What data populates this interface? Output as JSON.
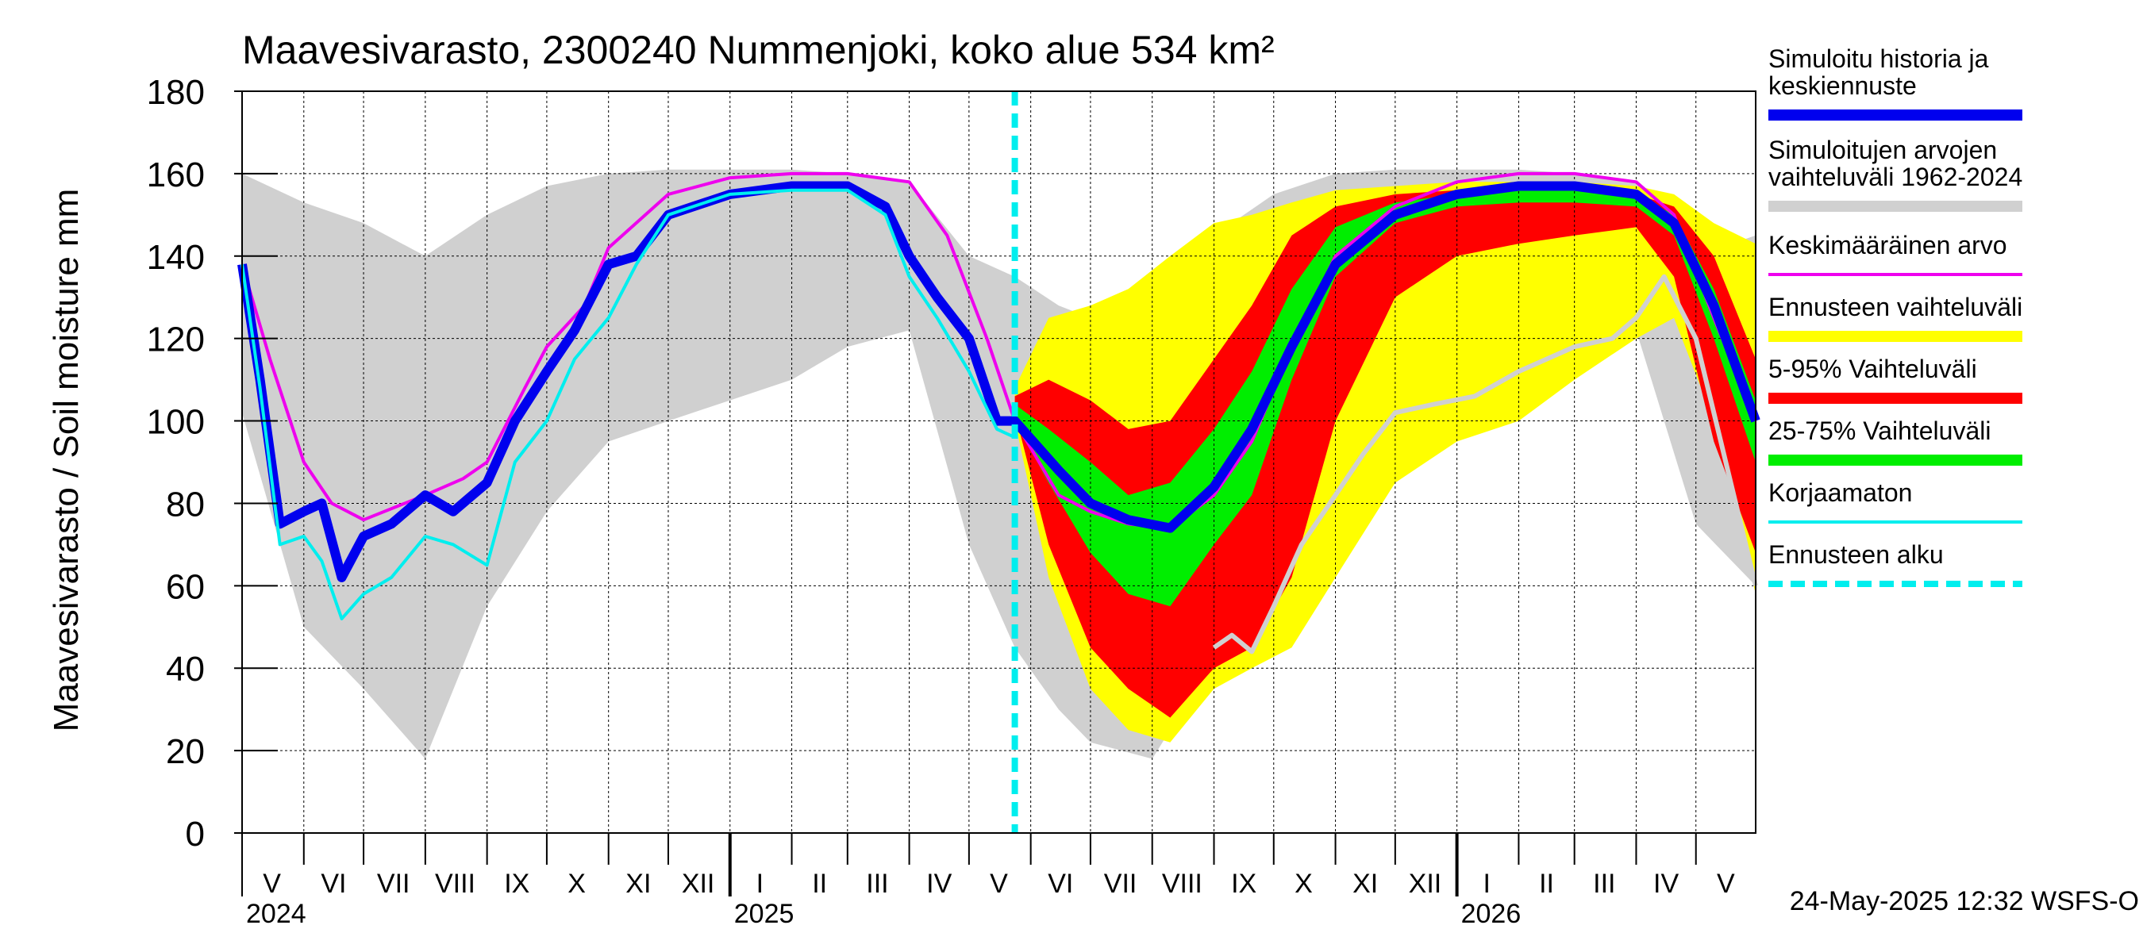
{
  "chart_data": {
    "type": "area",
    "title": "Maavesivarasto, 2300240 Nummenjoki, koko alue 534 km²",
    "ylabel": "Maavesivarasto / Soil moisture   mm",
    "ylim": [
      0,
      180
    ],
    "yticks": [
      0,
      20,
      40,
      60,
      80,
      100,
      120,
      140,
      160,
      180
    ],
    "xlim": [
      "2024-05-01",
      "2026-05-31"
    ],
    "grid": true,
    "legend_position": "right",
    "month_labels": [
      {
        "label": "V",
        "date": "2024-05-16"
      },
      {
        "label": "VI",
        "date": "2024-06-16"
      },
      {
        "label": "VII",
        "date": "2024-07-16"
      },
      {
        "label": "VIII",
        "date": "2024-08-16"
      },
      {
        "label": "IX",
        "date": "2024-09-16"
      },
      {
        "label": "X",
        "date": "2024-10-16"
      },
      {
        "label": "XI",
        "date": "2024-11-16"
      },
      {
        "label": "XII",
        "date": "2024-12-16"
      },
      {
        "label": "I",
        "date": "2025-01-16"
      },
      {
        "label": "II",
        "date": "2025-02-15"
      },
      {
        "label": "III",
        "date": "2025-03-16"
      },
      {
        "label": "IV",
        "date": "2025-04-16"
      },
      {
        "label": "V",
        "date": "2025-05-16"
      },
      {
        "label": "VI",
        "date": "2025-06-16"
      },
      {
        "label": "VII",
        "date": "2025-07-16"
      },
      {
        "label": "VIII",
        "date": "2025-08-16"
      },
      {
        "label": "IX",
        "date": "2025-09-16"
      },
      {
        "label": "X",
        "date": "2025-10-16"
      },
      {
        "label": "XI",
        "date": "2025-11-16"
      },
      {
        "label": "XII",
        "date": "2025-12-16"
      },
      {
        "label": "I",
        "date": "2026-01-16"
      },
      {
        "label": "II",
        "date": "2026-02-15"
      },
      {
        "label": "III",
        "date": "2026-03-16"
      },
      {
        "label": "IV",
        "date": "2026-04-16"
      },
      {
        "label": "V",
        "date": "2026-05-16"
      }
    ],
    "year_labels": [
      {
        "label": "2024",
        "date": "2024-05-01"
      },
      {
        "label": "2025",
        "date": "2025-01-01"
      },
      {
        "label": "2026",
        "date": "2026-01-01"
      }
    ],
    "forecast_start": "2025-05-24",
    "timestamp": "24-May-2025 12:32 WSFS-O",
    "legend": [
      {
        "label": "Simuloitu historia ja keskiennuste",
        "color": "#0000ee",
        "style": "thick"
      },
      {
        "label": "Simuloitujen arvojen vaihteluväli 1962-2024",
        "color": "#d0d0d0",
        "style": "thick"
      },
      {
        "label": "Keskimääräinen arvo",
        "color": "#ee00ee",
        "style": "line"
      },
      {
        "label": "Ennusteen vaihteluväli",
        "color": "#ffff00",
        "style": "thick"
      },
      {
        "label": "5-95% Vaihteluväli",
        "color": "#ff0000",
        "style": "thick"
      },
      {
        "label": "25-75% Vaihteluväli",
        "color": "#00ee00",
        "style": "thick"
      },
      {
        "label": "Korjaamaton",
        "color": "#00eeee",
        "style": "line"
      },
      {
        "label": "Ennusteen alku",
        "color": "#00eeee",
        "style": "dashed"
      }
    ],
    "series": [
      {
        "name": "Simuloitujen arvojen vaihteluväli 1962-2024",
        "kind": "band",
        "color": "#d0d0d0",
        "x": [
          "2024-05-01",
          "2024-06-01",
          "2024-07-01",
          "2024-08-01",
          "2024-09-01",
          "2024-10-01",
          "2024-11-01",
          "2024-12-01",
          "2025-01-01",
          "2025-02-01",
          "2025-03-01",
          "2025-04-01",
          "2025-05-01",
          "2025-05-24",
          "2025-06-15",
          "2025-07-01",
          "2025-08-01",
          "2025-09-01",
          "2025-10-01",
          "2025-11-01",
          "2025-12-01",
          "2026-01-01",
          "2026-02-01",
          "2026-03-01",
          "2026-04-01",
          "2026-05-01",
          "2026-05-31"
        ],
        "low": [
          102,
          50,
          35,
          18,
          55,
          78,
          95,
          100,
          105,
          110,
          118,
          122,
          70,
          45,
          30,
          22,
          18,
          42,
          60,
          82,
          98,
          105,
          110,
          118,
          122,
          75,
          60
        ],
        "high": [
          160,
          153,
          148,
          140,
          150,
          157,
          160,
          161,
          161,
          161,
          160,
          158,
          140,
          135,
          128,
          125,
          128,
          145,
          155,
          160,
          161,
          161,
          161,
          160,
          158,
          140,
          145
        ]
      },
      {
        "name": "Ennusteen vaihteluväli",
        "kind": "band",
        "color": "#ffff00",
        "x": [
          "2025-05-24",
          "2025-06-10",
          "2025-07-01",
          "2025-07-20",
          "2025-08-10",
          "2025-09-01",
          "2025-09-20",
          "2025-10-10",
          "2025-11-01",
          "2025-12-01",
          "2026-01-01",
          "2026-02-01",
          "2026-03-01",
          "2026-04-01",
          "2026-04-20",
          "2026-05-10",
          "2026-05-31"
        ],
        "low": [
          100,
          62,
          35,
          25,
          22,
          35,
          40,
          45,
          62,
          85,
          95,
          100,
          110,
          120,
          125,
          100,
          58
        ],
        "high": [
          108,
          125,
          128,
          132,
          140,
          148,
          150,
          153,
          156,
          157,
          158,
          158,
          158,
          157,
          155,
          148,
          143
        ]
      },
      {
        "name": "5-95% Vaihteluväli",
        "kind": "band",
        "color": "#ff0000",
        "x": [
          "2025-05-24",
          "2025-06-10",
          "2025-07-01",
          "2025-07-20",
          "2025-08-10",
          "2025-09-01",
          "2025-09-20",
          "2025-10-10",
          "2025-11-01",
          "2025-12-01",
          "2026-01-01",
          "2026-02-01",
          "2026-03-01",
          "2026-04-01",
          "2026-04-20",
          "2026-05-10",
          "2026-05-31"
        ],
        "low": [
          102,
          70,
          45,
          35,
          28,
          40,
          45,
          62,
          100,
          130,
          140,
          143,
          145,
          147,
          135,
          95,
          68
        ],
        "high": [
          106,
          110,
          105,
          98,
          100,
          115,
          128,
          145,
          152,
          155,
          156,
          156,
          156,
          155,
          152,
          140,
          115
        ]
      },
      {
        "name": "25-75% Vaihteluväli",
        "kind": "band",
        "color": "#00ee00",
        "x": [
          "2025-05-24",
          "2025-06-10",
          "2025-07-01",
          "2025-07-20",
          "2025-08-10",
          "2025-09-01",
          "2025-09-20",
          "2025-10-10",
          "2025-11-01",
          "2025-12-01",
          "2026-01-01",
          "2026-02-01",
          "2026-03-01",
          "2026-04-01",
          "2026-04-20",
          "2026-05-10",
          "2026-05-31"
        ],
        "low": [
          100,
          85,
          68,
          58,
          55,
          70,
          82,
          110,
          135,
          148,
          152,
          153,
          153,
          152,
          145,
          120,
          90
        ],
        "high": [
          104,
          98,
          90,
          82,
          85,
          98,
          112,
          132,
          147,
          153,
          155,
          156,
          156,
          155,
          150,
          132,
          105
        ]
      },
      {
        "name": "Keskimääräinen arvo",
        "kind": "line",
        "color": "#ee00ee",
        "x": [
          "2024-05-01",
          "2024-05-15",
          "2024-06-01",
          "2024-06-15",
          "2024-07-01",
          "2024-08-01",
          "2024-08-20",
          "2024-09-01",
          "2024-09-20",
          "2024-10-01",
          "2024-10-20",
          "2024-11-01",
          "2024-12-01",
          "2025-01-01",
          "2025-02-01",
          "2025-03-01",
          "2025-04-01",
          "2025-04-20",
          "2025-05-10",
          "2025-05-24",
          "2025-06-15",
          "2025-07-01",
          "2025-07-20",
          "2025-08-10",
          "2025-09-01",
          "2025-09-20",
          "2025-10-10",
          "2025-11-01",
          "2025-12-01",
          "2026-01-01",
          "2026-02-01",
          "2026-03-01",
          "2026-04-01",
          "2026-04-20",
          "2026-05-10",
          "2026-05-31"
        ],
        "y": [
          138,
          115,
          90,
          80,
          76,
          82,
          86,
          90,
          108,
          118,
          128,
          142,
          155,
          159,
          160,
          160,
          158,
          145,
          120,
          100,
          82,
          78,
          75,
          74,
          82,
          95,
          118,
          140,
          152,
          158,
          160,
          160,
          158,
          150,
          125,
          100
        ]
      },
      {
        "name": "Simuloitu historia ja keskiennuste",
        "kind": "line",
        "color": "#0000ee",
        "x": [
          "2024-05-01",
          "2024-05-10",
          "2024-05-20",
          "2024-06-01",
          "2024-06-10",
          "2024-06-20",
          "2024-07-01",
          "2024-07-15",
          "2024-08-01",
          "2024-08-15",
          "2024-09-01",
          "2024-09-15",
          "2024-10-01",
          "2024-10-15",
          "2024-11-01",
          "2024-11-15",
          "2024-12-01",
          "2025-01-01",
          "2025-02-01",
          "2025-03-01",
          "2025-03-20",
          "2025-04-01",
          "2025-04-15",
          "2025-05-01",
          "2025-05-15",
          "2025-05-24",
          "2025-06-15",
          "2025-07-01",
          "2025-07-20",
          "2025-08-10",
          "2025-09-01",
          "2025-09-20",
          "2025-10-10",
          "2025-11-01",
          "2025-12-01",
          "2026-01-01",
          "2026-02-01",
          "2026-03-01",
          "2026-04-01",
          "2026-04-20",
          "2026-05-10",
          "2026-05-31"
        ],
        "y": [
          138,
          110,
          75,
          78,
          80,
          62,
          72,
          75,
          82,
          78,
          85,
          100,
          112,
          122,
          138,
          140,
          150,
          155,
          157,
          157,
          152,
          140,
          130,
          120,
          100,
          100,
          88,
          80,
          76,
          74,
          84,
          98,
          118,
          138,
          150,
          155,
          157,
          157,
          155,
          148,
          128,
          100
        ]
      },
      {
        "name": "Korjaamaton",
        "kind": "line",
        "color": "#00eeee",
        "x": [
          "2024-05-01",
          "2024-05-10",
          "2024-05-20",
          "2024-06-01",
          "2024-06-10",
          "2024-06-20",
          "2024-07-01",
          "2024-07-15",
          "2024-08-01",
          "2024-08-15",
          "2024-09-01",
          "2024-09-15",
          "2024-10-01",
          "2024-10-15",
          "2024-11-01",
          "2024-11-15",
          "2024-12-01",
          "2025-01-01",
          "2025-02-01",
          "2025-03-01",
          "2025-03-20",
          "2025-04-01",
          "2025-04-15",
          "2025-05-01",
          "2025-05-15",
          "2025-05-24"
        ],
        "y": [
          138,
          108,
          70,
          72,
          66,
          52,
          58,
          62,
          72,
          70,
          65,
          90,
          100,
          115,
          125,
          138,
          150,
          155,
          156,
          156,
          150,
          135,
          125,
          112,
          98,
          96
        ]
      },
      {
        "name": "",
        "kind": "line",
        "color": "#d0d0d0",
        "x": [
          "2025-09-01",
          "2025-09-10",
          "2025-09-20",
          "2025-10-01",
          "2025-10-15",
          "2025-11-01",
          "2025-11-15",
          "2025-12-01",
          "2025-12-20",
          "2026-01-10",
          "2026-02-01",
          "2026-03-01",
          "2026-03-20",
          "2026-04-01",
          "2026-04-15",
          "2026-05-01",
          "2026-05-31"
        ],
        "y": [
          45,
          48,
          44,
          55,
          70,
          82,
          92,
          102,
          104,
          106,
          112,
          118,
          120,
          125,
          135,
          120,
          60
        ]
      }
    ]
  }
}
